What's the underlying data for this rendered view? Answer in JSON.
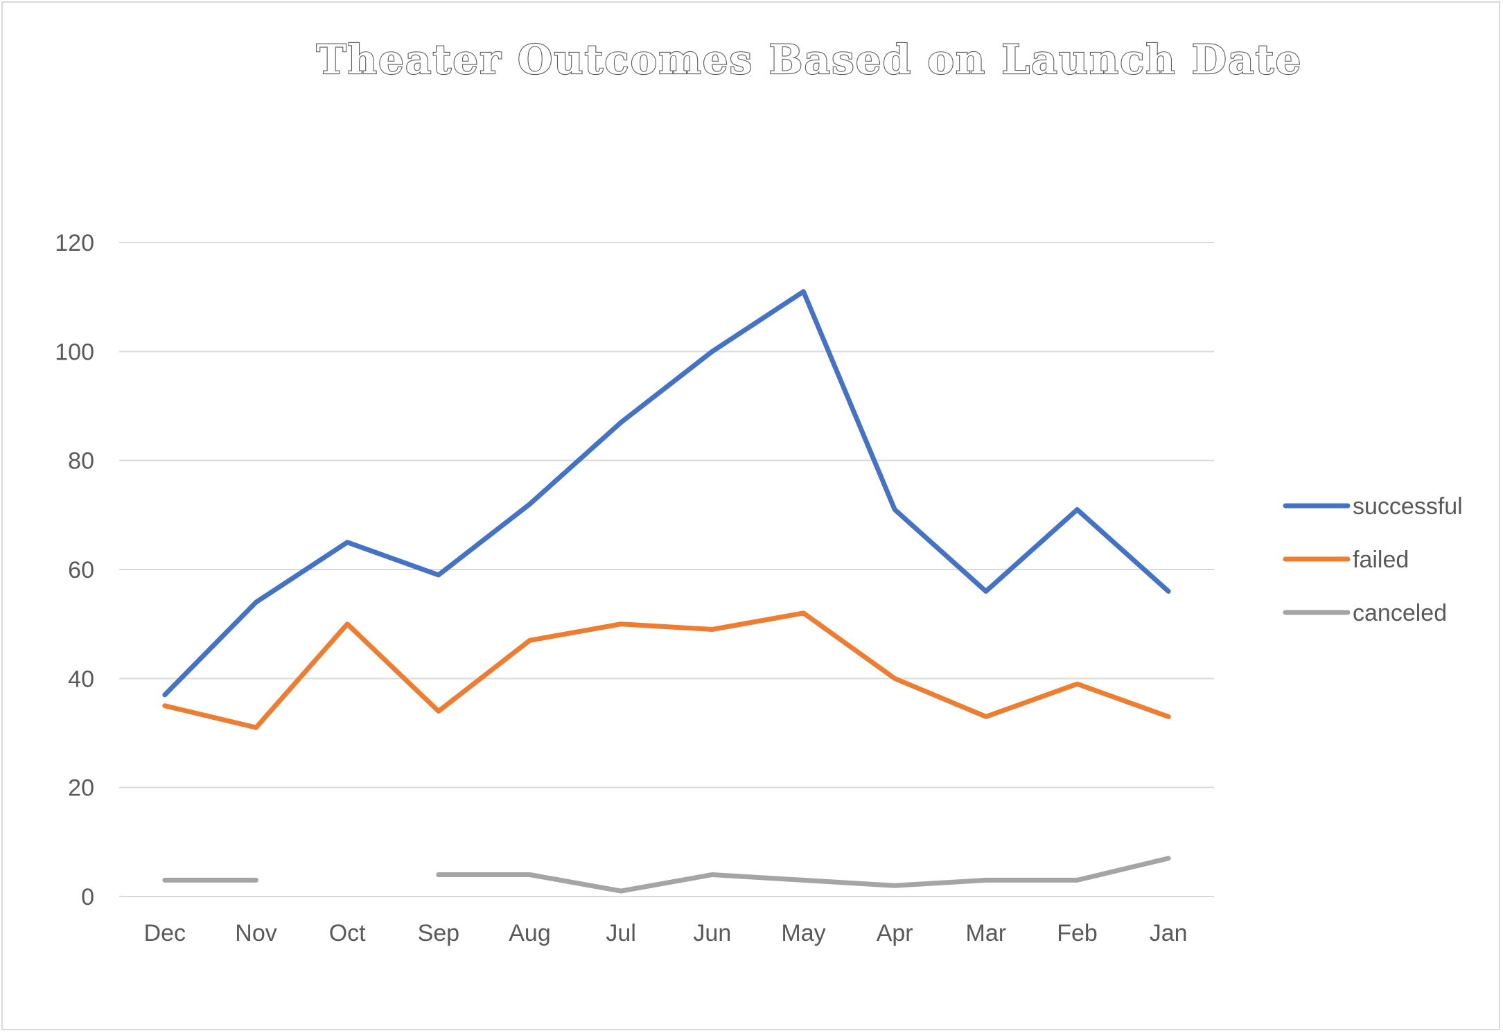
{
  "chart_data": {
    "type": "line",
    "title": "Theater Outcomes Based on Launch Date",
    "xlabel": "",
    "ylabel": "",
    "categories": [
      "Dec",
      "Nov",
      "Oct",
      "Sep",
      "Aug",
      "Jul",
      "Jun",
      "May",
      "Apr",
      "Mar",
      "Feb",
      "Jan"
    ],
    "ylim": [
      0,
      120
    ],
    "yticks": [
      "0",
      "20",
      "40",
      "60",
      "80",
      "100",
      "120"
    ],
    "grid": true,
    "legend": "right",
    "series": [
      {
        "name": "successful",
        "color": "#4472c4",
        "values": [
          37,
          54,
          65,
          59,
          72,
          87,
          100,
          111,
          71,
          56,
          71,
          56
        ]
      },
      {
        "name": "failed",
        "color": "#ed7d31",
        "values": [
          35,
          31,
          50,
          34,
          47,
          50,
          49,
          52,
          40,
          33,
          39,
          33
        ]
      },
      {
        "name": "canceled",
        "color": "#a5a5a5",
        "values": [
          3,
          3,
          null,
          4,
          4,
          1,
          4,
          3,
          2,
          3,
          3,
          7
        ]
      }
    ]
  }
}
